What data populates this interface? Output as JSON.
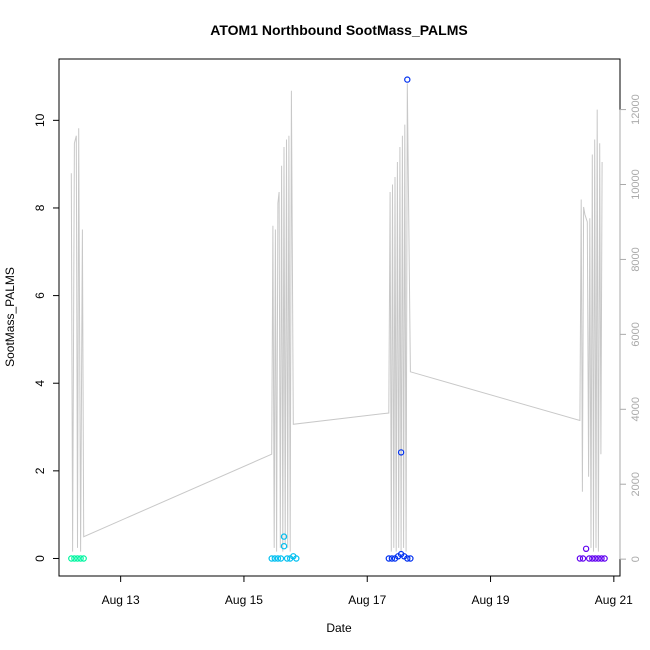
{
  "chart_data": {
    "type": "scatter",
    "title": "ATOM1 Northbound SootMass_PALMS",
    "xlabel": "Date",
    "ylabel": "SootMass_PALMS",
    "x_ticks": [
      "Aug 13",
      "Aug 15",
      "Aug 17",
      "Aug 19",
      "Aug 21"
    ],
    "x_tick_days": [
      13,
      15,
      17,
      19,
      21
    ],
    "xlim_days": [
      12.0,
      21.1
    ],
    "ylim": [
      -0.4,
      11.4
    ],
    "y_ticks": [
      0,
      2,
      4,
      6,
      8,
      10
    ],
    "y2_ticks": [
      0,
      2000,
      4000,
      6000,
      8000,
      10000,
      12000
    ],
    "y2lim": [
      -450,
      13350
    ],
    "y2_color": "#aaaaaa",
    "line_color": "#c8c8c8",
    "grid": false,
    "legend": "none",
    "series": [
      {
        "color": "#00f5a0",
        "points": [
          [
            12.2,
            0
          ],
          [
            12.25,
            0
          ],
          [
            12.3,
            0
          ],
          [
            12.35,
            0
          ],
          [
            12.4,
            0
          ]
        ]
      },
      {
        "color": "#00bff0",
        "points": [
          [
            15.45,
            0
          ],
          [
            15.5,
            0
          ],
          [
            15.55,
            0
          ],
          [
            15.6,
            0
          ],
          [
            15.65,
            0.28
          ],
          [
            15.65,
            0.5
          ],
          [
            15.7,
            0
          ],
          [
            15.75,
            0
          ],
          [
            15.8,
            0.05
          ],
          [
            15.85,
            0
          ]
        ]
      },
      {
        "color": "#0030f0",
        "points": [
          [
            17.35,
            0
          ],
          [
            17.4,
            0
          ],
          [
            17.45,
            0
          ],
          [
            17.5,
            0.05
          ],
          [
            17.55,
            0.1
          ],
          [
            17.55,
            2.42
          ],
          [
            17.6,
            0.05
          ],
          [
            17.65,
            0
          ],
          [
            17.65,
            10.93
          ],
          [
            17.7,
            0
          ]
        ]
      },
      {
        "color": "#6000f0",
        "points": [
          [
            20.45,
            0
          ],
          [
            20.5,
            0
          ],
          [
            20.55,
            0.22
          ],
          [
            20.6,
            0
          ],
          [
            20.65,
            0
          ],
          [
            20.7,
            0
          ],
          [
            20.75,
            0
          ],
          [
            20.8,
            0
          ],
          [
            20.85,
            0
          ]
        ]
      }
    ],
    "altitude_trace": [
      [
        12.2,
        10300
      ],
      [
        12.22,
        200
      ],
      [
        12.25,
        11100
      ],
      [
        12.28,
        11300
      ],
      [
        12.3,
        300
      ],
      [
        12.32,
        11500
      ],
      [
        12.35,
        200
      ],
      [
        12.38,
        8800
      ],
      [
        12.4,
        600
      ],
      [
        15.45,
        2800
      ],
      [
        15.47,
        8900
      ],
      [
        15.49,
        300
      ],
      [
        15.51,
        8800
      ],
      [
        15.53,
        200
      ],
      [
        15.55,
        9500
      ],
      [
        15.57,
        9800
      ],
      [
        15.59,
        300
      ],
      [
        15.61,
        10500
      ],
      [
        15.63,
        200
      ],
      [
        15.65,
        11000
      ],
      [
        15.67,
        400
      ],
      [
        15.69,
        11200
      ],
      [
        15.71,
        300
      ],
      [
        15.73,
        11300
      ],
      [
        15.75,
        200
      ],
      [
        15.77,
        12500
      ],
      [
        15.8,
        3600
      ],
      [
        17.35,
        3900
      ],
      [
        17.37,
        9800
      ],
      [
        17.39,
        200
      ],
      [
        17.41,
        10000
      ],
      [
        17.43,
        300
      ],
      [
        17.45,
        10200
      ],
      [
        17.47,
        200
      ],
      [
        17.49,
        10600
      ],
      [
        17.51,
        300
      ],
      [
        17.53,
        11000
      ],
      [
        17.55,
        200
      ],
      [
        17.57,
        11300
      ],
      [
        17.59,
        300
      ],
      [
        17.61,
        11600
      ],
      [
        17.63,
        200
      ],
      [
        17.65,
        12700
      ],
      [
        17.7,
        5000
      ],
      [
        20.45,
        3700
      ],
      [
        20.47,
        9600
      ],
      [
        20.49,
        1800
      ],
      [
        20.51,
        9400
      ],
      [
        20.53,
        9200
      ],
      [
        20.55,
        9100
      ],
      [
        20.57,
        9000
      ],
      [
        20.59,
        2200
      ],
      [
        20.61,
        9100
      ],
      [
        20.63,
        300
      ],
      [
        20.65,
        10800
      ],
      [
        20.67,
        200
      ],
      [
        20.69,
        11200
      ],
      [
        20.71,
        300
      ],
      [
        20.73,
        12000
      ],
      [
        20.75,
        200
      ],
      [
        20.77,
        11100
      ],
      [
        20.79,
        2800
      ],
      [
        20.81,
        10600
      ]
    ]
  }
}
